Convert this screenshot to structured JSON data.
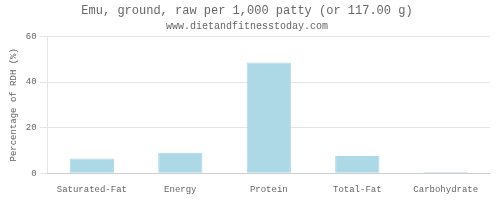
{
  "chart_data": {
    "type": "bar",
    "title": "Emu, ground, raw per 1,000 patty (or 117.00 g)",
    "subtitle": "www.dietandfitnesstoday.com",
    "categories": [
      "Saturated-Fat",
      "Energy",
      "Protein",
      "Total-Fat",
      "Carbohydrate"
    ],
    "values": [
      6.5,
      9.0,
      48.5,
      7.5,
      0.5
    ],
    "color": "#add8e6",
    "ylabel": "Percentage of RDH (%)",
    "ylim": [
      0,
      60
    ],
    "yticks": [
      0,
      20,
      40,
      60
    ],
    "grid": true
  }
}
